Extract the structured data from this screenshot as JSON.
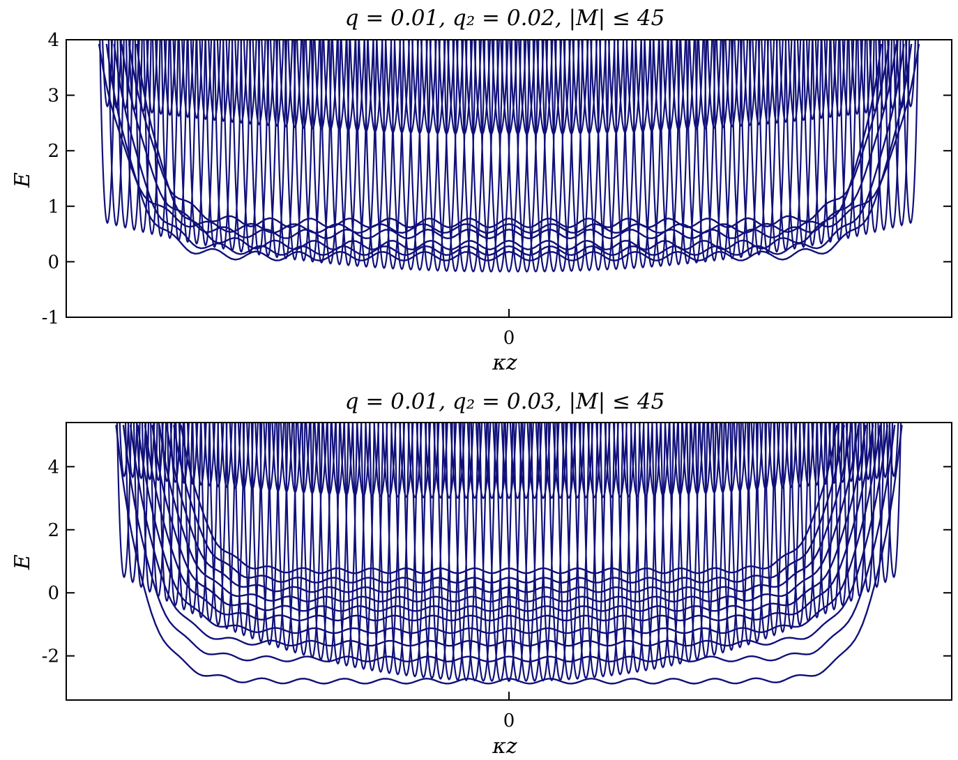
{
  "chart_data": [
    {
      "type": "line",
      "title": "q = 0.01, q₂ = 0.02, |M| ≤ 45",
      "xlabel": "κz",
      "ylabel": "E",
      "x_tick_labels": [
        "0"
      ],
      "y_tick_labels": [
        "-1",
        "0",
        "1",
        "2",
        "3",
        "4"
      ],
      "y_ticks": [
        -1,
        0,
        1,
        2,
        3,
        4
      ],
      "ylim": [
        -1,
        4
      ],
      "xlim": [
        -1,
        1
      ],
      "grid": false,
      "legend": "none",
      "line_color": "#10107a",
      "series": [
        {
          "values": [
            0.6,
            0.1,
            0.2,
            0.5,
            0.7,
            0.3,
            0.8,
            2.8,
            2.5,
            3.0
          ],
          "x": [
            -0.85,
            -0.4,
            0.0,
            0.4,
            0.85,
            -0.6,
            0.6,
            -0.8,
            0.0,
            0.8
          ]
        },
        {
          "values": [
            -0.15,
            -0.18,
            -0.1,
            0.05,
            0.4,
            0.7,
            0.9,
            1.2,
            2.3,
            2.8
          ]
        }
      ],
      "bands": [
        {
          "name_hidden": true,
          "E_min_center": -0.18,
          "E_min_edge": 0.7,
          "n_curves": 91
        },
        {
          "name_hidden": true,
          "E_min_center": 2.3,
          "E_min_edge": 2.8,
          "n_curves": 91
        }
      ]
    },
    {
      "type": "line",
      "title": "q = 0.01, q₂ = 0.03, |M| ≤ 45",
      "xlabel": "κz",
      "ylabel": "E",
      "x_tick_labels": [
        "0"
      ],
      "y_tick_labels": [
        "-2",
        "0",
        "2",
        "4"
      ],
      "y_ticks": [
        -2,
        0,
        2,
        4
      ],
      "ylim": [
        -3.4,
        5.4
      ],
      "xlim": [
        -1,
        1
      ],
      "grid": false,
      "legend": "none",
      "line_color": "#10107a",
      "series": [
        {
          "values": [
            -2.8,
            -2.1,
            -1.6,
            -1.2,
            -0.8,
            -0.5,
            -0.2,
            0.1,
            0.4,
            0.7
          ]
        },
        {
          "values": [
            3.0,
            3.1,
            3.3,
            3.5,
            3.7,
            4.0
          ]
        }
      ],
      "bands": [
        {
          "name_hidden": true,
          "E_min_center": -2.8,
          "E_min_edge": 0.5,
          "n_curves": 91
        },
        {
          "name_hidden": true,
          "E_min_center": 3.0,
          "E_min_edge": 3.7,
          "n_curves": 91
        }
      ]
    }
  ]
}
